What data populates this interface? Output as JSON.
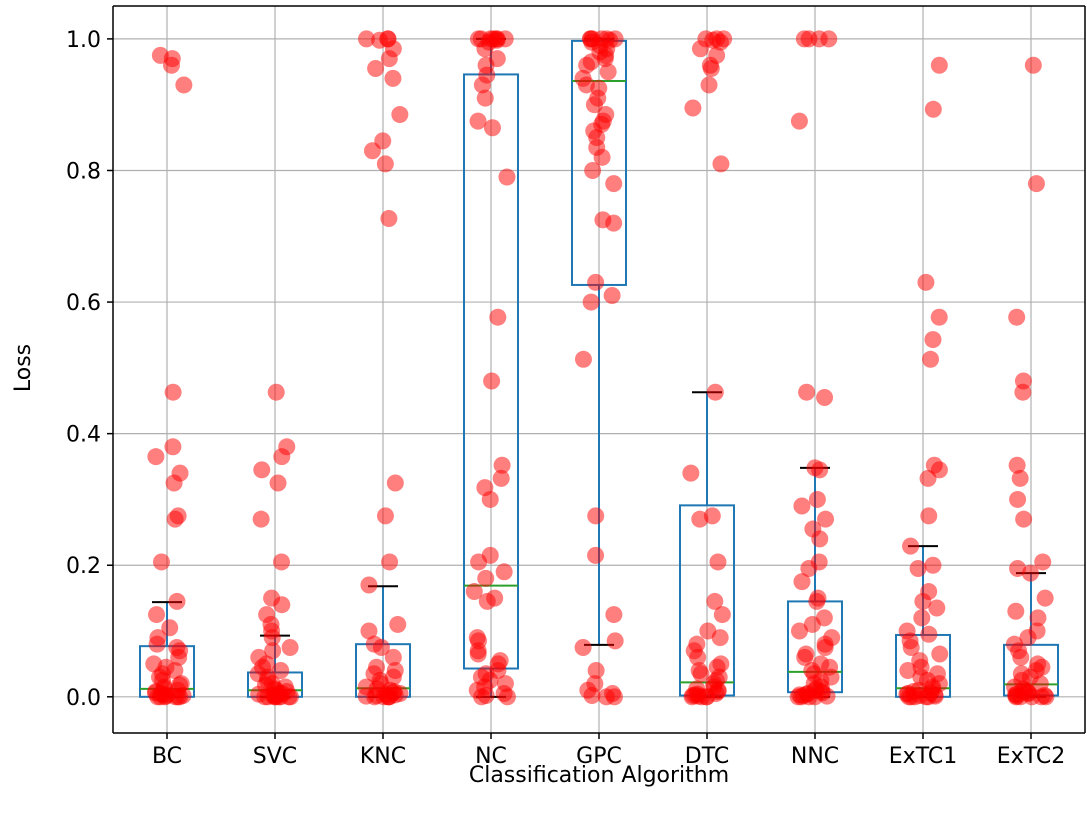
{
  "chart_data": {
    "type": "box",
    "xlabel": "Classification Algorithm",
    "ylabel": "Loss",
    "ylim": [
      -0.055,
      1.05
    ],
    "yticks": [
      0.0,
      0.2,
      0.4,
      0.6,
      0.8,
      1.0
    ],
    "ytick_labels": [
      "0.0",
      "0.2",
      "0.4",
      "0.6",
      "0.8",
      "1.0"
    ],
    "grid": true,
    "categories": [
      "BC",
      "SVC",
      "KNC",
      "NC",
      "GPC",
      "DTC",
      "NNC",
      "ExTC1",
      "ExTC2"
    ],
    "colors": {
      "box": "#1f77b4",
      "median": "#2ca02c",
      "whisker_cap": "#000000",
      "points": "#ff0000",
      "grid": "#b0b0b0"
    },
    "boxes": [
      {
        "name": "BC",
        "q1": 0.0,
        "median": 0.012,
        "q3": 0.077,
        "whisker_low": 0.0,
        "whisker_high": 0.144
      },
      {
        "name": "SVC",
        "q1": 0.0,
        "median": 0.01,
        "q3": 0.037,
        "whisker_low": 0.0,
        "whisker_high": 0.093
      },
      {
        "name": "KNC",
        "q1": 0.0,
        "median": 0.013,
        "q3": 0.08,
        "whisker_low": 0.0,
        "whisker_high": 0.168
      },
      {
        "name": "NC",
        "q1": 0.043,
        "median": 0.169,
        "q3": 0.946,
        "whisker_low": 0.0,
        "whisker_high": 1.0
      },
      {
        "name": "GPC",
        "q1": 0.626,
        "median": 0.936,
        "q3": 0.997,
        "whisker_low": 0.079,
        "whisker_high": 1.0
      },
      {
        "name": "DTC",
        "q1": 0.002,
        "median": 0.022,
        "q3": 0.291,
        "whisker_low": 0.0,
        "whisker_high": 0.463
      },
      {
        "name": "NNC",
        "q1": 0.007,
        "median": 0.038,
        "q3": 0.145,
        "whisker_low": 0.0,
        "whisker_high": 0.348
      },
      {
        "name": "ExTC1",
        "q1": 0.0,
        "median": 0.013,
        "q3": 0.094,
        "whisker_low": 0.0,
        "whisker_high": 0.229
      },
      {
        "name": "ExTC2",
        "q1": 0.002,
        "median": 0.019,
        "q3": 0.079,
        "whisker_low": 0.0,
        "whisker_high": 0.188
      }
    ],
    "points": [
      [
        0.97,
        0.975,
        0.96,
        0.93,
        0.463,
        0.38,
        0.365,
        0.34,
        0.325,
        0.275,
        0.27,
        0.205,
        0.145,
        0.125,
        0.105,
        0.09,
        0.08,
        0.075,
        0.07,
        0.06,
        0.05,
        0.045,
        0.04,
        0.035,
        0.03,
        0.025,
        0.02,
        0.018,
        0.015,
        0.012,
        0.01,
        0.008,
        0.006,
        0.005,
        0.004,
        0.003,
        0.002,
        0.001,
        0.0,
        0.0,
        0.0,
        0.0,
        0.0,
        0.0
      ],
      [
        0.463,
        0.38,
        0.365,
        0.345,
        0.325,
        0.27,
        0.205,
        0.15,
        0.14,
        0.125,
        0.11,
        0.1,
        0.09,
        0.075,
        0.07,
        0.06,
        0.05,
        0.045,
        0.04,
        0.035,
        0.03,
        0.025,
        0.02,
        0.018,
        0.015,
        0.012,
        0.01,
        0.008,
        0.006,
        0.005,
        0.004,
        0.003,
        0.002,
        0.001,
        0.0,
        0.0,
        0.0,
        0.0,
        0.0,
        0.0,
        0.0,
        0.0
      ],
      [
        1.0,
        1.0,
        1.0,
        0.998,
        0.985,
        0.97,
        0.955,
        0.94,
        0.885,
        0.845,
        0.83,
        0.81,
        0.727,
        0.325,
        0.275,
        0.205,
        0.17,
        0.11,
        0.1,
        0.08,
        0.075,
        0.06,
        0.045,
        0.04,
        0.035,
        0.03,
        0.025,
        0.02,
        0.015,
        0.012,
        0.01,
        0.008,
        0.006,
        0.005,
        0.004,
        0.003,
        0.002,
        0.001,
        0.0,
        0.0,
        0.0,
        0.0,
        0.0
      ],
      [
        1.0,
        1.0,
        1.0,
        1.0,
        1.0,
        1.0,
        1.0,
        0.998,
        0.995,
        0.985,
        0.97,
        0.96,
        0.945,
        0.93,
        0.91,
        0.875,
        0.865,
        0.79,
        0.577,
        0.48,
        0.352,
        0.332,
        0.318,
        0.3,
        0.215,
        0.205,
        0.19,
        0.18,
        0.16,
        0.15,
        0.145,
        0.09,
        0.085,
        0.07,
        0.065,
        0.055,
        0.05,
        0.04,
        0.035,
        0.03,
        0.025,
        0.02,
        0.015,
        0.01,
        0.005,
        0.002,
        0.0,
        0.0
      ],
      [
        1.0,
        1.0,
        1.0,
        1.0,
        1.0,
        1.0,
        0.998,
        0.995,
        0.99,
        0.985,
        0.98,
        0.975,
        0.97,
        0.965,
        0.96,
        0.95,
        0.94,
        0.93,
        0.925,
        0.91,
        0.9,
        0.885,
        0.875,
        0.87,
        0.86,
        0.85,
        0.835,
        0.82,
        0.8,
        0.78,
        0.72,
        0.725,
        0.63,
        0.61,
        0.6,
        0.513,
        0.275,
        0.215,
        0.125,
        0.085,
        0.075,
        0.04,
        0.02,
        0.01,
        0.005,
        0.002,
        0.0,
        0.0
      ],
      [
        1.0,
        1.0,
        1.0,
        0.998,
        0.995,
        0.985,
        0.975,
        0.96,
        0.955,
        0.93,
        0.895,
        0.81,
        0.463,
        0.34,
        0.275,
        0.27,
        0.205,
        0.145,
        0.125,
        0.1,
        0.09,
        0.08,
        0.07,
        0.06,
        0.05,
        0.045,
        0.04,
        0.035,
        0.03,
        0.025,
        0.02,
        0.015,
        0.012,
        0.01,
        0.008,
        0.005,
        0.004,
        0.003,
        0.002,
        0.001,
        0.0,
        0.0,
        0.0,
        0.0
      ],
      [
        1.0,
        1.0,
        1.0,
        1.0,
        0.875,
        0.463,
        0.455,
        0.348,
        0.345,
        0.3,
        0.29,
        0.27,
        0.255,
        0.24,
        0.205,
        0.195,
        0.175,
        0.15,
        0.145,
        0.12,
        0.11,
        0.1,
        0.09,
        0.08,
        0.075,
        0.065,
        0.06,
        0.05,
        0.045,
        0.04,
        0.035,
        0.03,
        0.025,
        0.02,
        0.015,
        0.012,
        0.01,
        0.008,
        0.006,
        0.005,
        0.004,
        0.003,
        0.002,
        0.001,
        0.0,
        0.0,
        0.0,
        0.0
      ],
      [
        0.96,
        0.893,
        0.63,
        0.577,
        0.543,
        0.513,
        0.352,
        0.345,
        0.332,
        0.275,
        0.229,
        0.2,
        0.195,
        0.16,
        0.145,
        0.135,
        0.12,
        0.1,
        0.095,
        0.085,
        0.075,
        0.065,
        0.055,
        0.045,
        0.04,
        0.035,
        0.03,
        0.025,
        0.02,
        0.015,
        0.012,
        0.01,
        0.008,
        0.006,
        0.005,
        0.004,
        0.003,
        0.002,
        0.001,
        0.0,
        0.0,
        0.0,
        0.0,
        0.0
      ],
      [
        0.96,
        0.78,
        0.577,
        0.48,
        0.463,
        0.352,
        0.332,
        0.3,
        0.27,
        0.205,
        0.195,
        0.188,
        0.15,
        0.13,
        0.12,
        0.1,
        0.09,
        0.08,
        0.07,
        0.06,
        0.05,
        0.045,
        0.04,
        0.035,
        0.03,
        0.025,
        0.02,
        0.015,
        0.012,
        0.01,
        0.008,
        0.006,
        0.005,
        0.004,
        0.003,
        0.002,
        0.001,
        0.0,
        0.0,
        0.0,
        0.0,
        0.0
      ]
    ]
  }
}
